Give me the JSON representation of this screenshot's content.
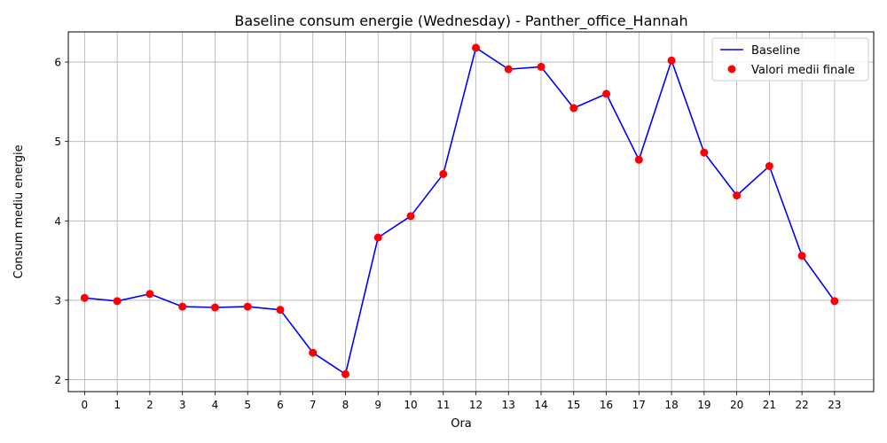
{
  "chart_data": {
    "type": "line",
    "title": "Baseline consum energie (Wednesday) - Panther_office_Hannah",
    "xlabel": "Ora",
    "ylabel": "Consum mediu energie",
    "x": [
      0,
      1,
      2,
      3,
      4,
      5,
      6,
      7,
      8,
      9,
      10,
      11,
      12,
      13,
      14,
      15,
      16,
      17,
      18,
      19,
      20,
      21,
      22,
      23
    ],
    "xlim": [
      -0.5,
      24.2
    ],
    "ylim": [
      1.85,
      6.38
    ],
    "yticks": [
      2,
      3,
      4,
      5,
      6
    ],
    "grid": true,
    "legend_position": "top-right",
    "series": [
      {
        "name": "Baseline",
        "kind": "line",
        "color": "#0000ff",
        "values": [
          3.03,
          2.99,
          3.08,
          2.92,
          2.91,
          2.92,
          2.88,
          2.34,
          2.07,
          3.79,
          4.06,
          4.59,
          6.18,
          5.91,
          5.94,
          5.42,
          5.6,
          4.77,
          6.02,
          4.86,
          4.32,
          4.69,
          3.56,
          2.99
        ]
      },
      {
        "name": "Valori medii finale",
        "kind": "scatter",
        "color": "#ff0000",
        "values": [
          3.03,
          2.99,
          3.08,
          2.92,
          2.91,
          2.92,
          2.88,
          2.34,
          2.07,
          3.79,
          4.06,
          4.59,
          6.18,
          5.91,
          5.94,
          5.42,
          5.6,
          4.77,
          6.02,
          4.86,
          4.32,
          4.69,
          3.56,
          2.99
        ]
      }
    ]
  }
}
